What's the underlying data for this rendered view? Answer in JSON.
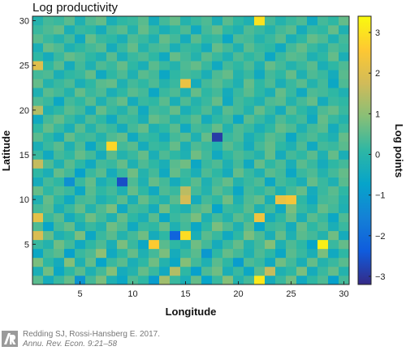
{
  "chart_data": {
    "type": "heatmap",
    "title": "Log productivity",
    "xlabel": "Longitude",
    "ylabel": "Latitude",
    "colorbar_label": "Log points",
    "x_range": [
      0.5,
      30.5
    ],
    "y_range": [
      0.5,
      30.5
    ],
    "x_ticks": [
      5,
      10,
      15,
      20,
      25,
      30
    ],
    "y_ticks": [
      5,
      10,
      15,
      20,
      25,
      30
    ],
    "color_range": [
      -3.2,
      3.4
    ],
    "color_ticks": [
      -3,
      -2,
      -1,
      0,
      1,
      2,
      3
    ],
    "colormap": [
      "#352a87",
      "#0f5cdd",
      "#1481d6",
      "#06a4ca",
      "#2eb7a4",
      "#87bf77",
      "#d1bb59",
      "#fec832",
      "#f9fb0e"
    ],
    "grid_size": [
      30,
      30
    ],
    "values_note": "",
    "z": [
      [
        0.5,
        -0.4,
        0.2,
        0.6,
        -1.1,
        0.3,
        0.8,
        -0.2,
        -0.6,
        0.4,
        0.1,
        -0.9,
        1.2,
        0.2,
        -0.3,
        0.6,
        -0.7,
        0.2,
        0.9,
        -0.1,
        0.3,
        3.1,
        -0.4,
        0.2,
        0.7,
        -0.5,
        0.1,
        0.4,
        -0.8,
        0.3
      ],
      [
        -0.3,
        0.7,
        -0.6,
        0.1,
        0.5,
        -0.2,
        0.3,
        0.9,
        -0.4,
        -0.1,
        0.6,
        0.2,
        -0.5,
        1.4,
        0.1,
        -0.8,
        0.4,
        0.7,
        -0.3,
        0.2,
        -0.6,
        0.5,
        1.6,
        -0.2,
        0.1,
        0.8,
        -0.4,
        0.2,
        0.6,
        -0.1
      ],
      [
        0.8,
        0.1,
        -0.4,
        0.9,
        -0.2,
        0.6,
        -0.7,
        0.2,
        0.5,
        -0.3,
        0.1,
        0.7,
        -0.1,
        -0.6,
        0.9,
        0.3,
        -0.2,
        0.5,
        0.1,
        -0.9,
        0.4,
        0.2,
        -0.5,
        0.7,
        0.3,
        -0.3,
        0.6,
        -0.1,
        0.2,
        0.5
      ],
      [
        -0.6,
        0.3,
        0.5,
        -0.8,
        0.2,
        0.4,
        1.0,
        -0.5,
        0.1,
        0.6,
        -0.2,
        0.3,
        0.8,
        -0.4,
        0.2,
        0.5,
        -1.0,
        0.1,
        0.6,
        0.3,
        -0.2,
        0.4,
        0.1,
        -0.6,
        0.5,
        0.2,
        -0.3,
        0.8,
        -0.5,
        0.1
      ],
      [
        0.2,
        -0.1,
        0.7,
        0.3,
        -0.5,
        0.1,
        0.4,
        -0.3,
        0.8,
        0.2,
        -0.6,
        2.6,
        0.5,
        0.1,
        -0.2,
        0.7,
        0.3,
        -0.4,
        0.2,
        0.6,
        -0.1,
        0.3,
        0.9,
        -0.2,
        0.4,
        0.1,
        -0.7,
        3.2,
        0.2,
        0.6
      ],
      [
        1.9,
        0.6,
        -0.2,
        0.1,
        0.8,
        -0.6,
        0.2,
        0.5,
        -0.1,
        0.3,
        0.7,
        -0.4,
        0.1,
        -2.2,
        2.9,
        -0.3,
        0.5,
        0.2,
        -0.5,
        0.1,
        0.8,
        0.4,
        -0.3,
        0.6,
        -0.2,
        0.5,
        0.3,
        -0.1,
        0.7,
        -0.4
      ],
      [
        0.4,
        -0.7,
        0.3,
        0.6,
        -0.3,
        0.2,
        -0.1,
        0.7,
        0.4,
        -0.5,
        0.2,
        0.1,
        0.6,
        -0.2,
        0.3,
        -0.6,
        0.1,
        0.8,
        0.4,
        -0.2,
        0.5,
        -0.7,
        0.2,
        0.3,
        -0.4,
        0.6,
        0.1,
        0.4,
        -0.3,
        0.2
      ],
      [
        2.1,
        0.2,
        0.5,
        -0.4,
        0.1,
        0.7,
        0.3,
        -0.2,
        0.6,
        0.1,
        -0.3,
        0.5,
        -0.6,
        0.2,
        0.4,
        0.8,
        -0.2,
        0.3,
        -0.1,
        0.5,
        0.2,
        2.3,
        -0.4,
        0.1,
        0.6,
        -0.3,
        0.5,
        0.2,
        -0.6,
        0.4
      ],
      [
        0.3,
        0.5,
        -0.3,
        0.2,
        0.6,
        -0.1,
        0.4,
        0.8,
        -0.5,
        0.3,
        0.2,
        -0.4,
        0.7,
        0.1,
        -0.2,
        0.4,
        0.6,
        -0.7,
        0.2,
        0.1,
        0.5,
        -0.2,
        0.3,
        -0.5,
        0.8,
        0.2,
        -0.1,
        0.6,
        0.3,
        -0.2
      ],
      [
        -0.2,
        0.6,
        0.1,
        -0.5,
        0.3,
        0.4,
        -0.2,
        0.1,
        0.5,
        -0.3,
        0.6,
        0.2,
        -0.1,
        0.5,
        1.8,
        -0.4,
        0.3,
        0.1,
        0.7,
        -0.2,
        0.4,
        0.6,
        -0.3,
        2.2,
        2.4,
        0.1,
        -0.5,
        0.3,
        0.4,
        -0.1
      ],
      [
        0.6,
        0.1,
        0.4,
        0.2,
        -0.6,
        0.5,
        0.1,
        0.3,
        -0.2,
        0.6,
        0.1,
        -0.5,
        0.4,
        0.2,
        1.5,
        0.3,
        -0.1,
        0.5,
        0.2,
        -0.6,
        0.3,
        0.1,
        0.4,
        -0.2,
        0.3,
        0.6,
        -0.4,
        0.2,
        0.5,
        0.1
      ],
      [
        -0.4,
        0.3,
        0.1,
        -1.2,
        0.2,
        0.6,
        -0.3,
        0.1,
        -2.6,
        0.4,
        -0.2,
        0.6,
        0.3,
        -0.4,
        0.1,
        0.5,
        -0.2,
        0.3,
        0.6,
        -0.1,
        0.2,
        0.4,
        -0.6,
        0.3,
        0.1,
        -0.3,
        0.6,
        0.2,
        -0.2,
        0.5
      ],
      [
        0.1,
        -0.3,
        0.6,
        0.3,
        -0.8,
        0.2,
        0.5,
        -0.4,
        0.2,
        0.7,
        -0.1,
        0.3,
        -0.5,
        0.6,
        0.2,
        -0.3,
        0.4,
        0.1,
        -0.4,
        0.6,
        0.2,
        -0.2,
        0.5,
        0.3,
        -0.6,
        0.2,
        0.4,
        -0.1,
        0.3,
        0.6
      ],
      [
        1.6,
        0.4,
        -0.2,
        0.5,
        0.1,
        -0.5,
        0.3,
        0.2,
        0.6,
        -0.2,
        0.4,
        0.1,
        -0.3,
        0.5,
        0.7,
        -0.6,
        0.2,
        0.4,
        -0.2,
        0.3,
        -0.5,
        0.6,
        0.1,
        0.4,
        -0.3,
        0.5,
        0.2,
        -0.4,
        0.1,
        0.3
      ],
      [
        0.2,
        -0.5,
        0.3,
        0.1,
        0.6,
        0.3,
        -0.4,
        0.5,
        -0.1,
        0.2,
        0.6,
        -0.3,
        0.4,
        0.1,
        -0.2,
        0.7,
        0.3,
        -0.5,
        0.1,
        0.4,
        0.2,
        -0.1,
        0.6,
        -0.4,
        0.3,
        0.1,
        0.5,
        -0.2,
        0.6,
        -0.3
      ],
      [
        -0.3,
        0.2,
        0.5,
        -0.2,
        0.4,
        -0.6,
        0.2,
        2.8,
        0.3,
        0.5,
        -0.4,
        0.2,
        0.1,
        0.6,
        -0.3,
        0.4,
        0.2,
        -0.1,
        0.5,
        0.2,
        -0.4,
        0.3,
        0.6,
        0.1,
        -0.2,
        0.4,
        -0.5,
        0.3,
        0.2,
        0.5
      ],
      [
        0.5,
        0.1,
        -0.4,
        0.6,
        0.2,
        0.3,
        -0.1,
        0.4,
        0.6,
        -0.5,
        0.2,
        0.1,
        -0.4,
        0.3,
        0.5,
        -0.2,
        0.6,
        -2.9,
        0.2,
        0.4,
        -0.3,
        0.1,
        0.5,
        0.3,
        -0.6,
        0.2,
        0.4,
        0.1,
        -0.2,
        0.6
      ],
      [
        0.1,
        0.6,
        0.2,
        -0.3,
        0.5,
        -0.1,
        0.4,
        0.2,
        -0.4,
        0.3,
        0.6,
        -0.2,
        0.1,
        0.5,
        -0.5,
        0.3,
        0.2,
        0.6,
        -0.1,
        0.4,
        0.2,
        -0.3,
        0.1,
        0.6,
        0.4,
        -0.2,
        0.3,
        0.5,
        -0.4,
        0.2
      ],
      [
        -0.5,
        0.3,
        0.6,
        0.2,
        -0.2,
        0.4,
        0.1,
        -0.5,
        0.3,
        0.2,
        -0.3,
        0.6,
        0.4,
        -0.1,
        0.2,
        0.5,
        -0.4,
        0.1,
        0.3,
        -0.6,
        0.5,
        0.2,
        -0.2,
        0.4,
        0.1,
        0.3,
        -0.5,
        0.6,
        0.2,
        -0.1
      ],
      [
        1.4,
        -0.2,
        0.1,
        0.5,
        0.3,
        -0.4,
        0.6,
        0.2,
        -0.1,
        0.4,
        -0.5,
        0.3,
        0.2,
        0.6,
        -0.3,
        0.1,
        0.4,
        -0.2,
        0.5,
        0.3,
        -0.1,
        0.6,
        0.2,
        -0.4,
        0.5,
        0.1,
        -0.3,
        0.4,
        0.6,
        0.2
      ],
      [
        0.4,
        0.2,
        -0.6,
        0.3,
        0.1,
        0.5,
        -0.2,
        0.3,
        0.6,
        -0.4,
        0.2,
        0.1,
        0.5,
        -0.3,
        0.4,
        -0.1,
        0.2,
        0.6,
        -0.5,
        0.3,
        0.1,
        -0.2,
        0.4,
        0.5,
        -0.1,
        0.3,
        0.6,
        -0.4,
        0.2,
        0.1
      ],
      [
        -0.2,
        0.5,
        0.3,
        -0.1,
        0.6,
        0.2,
        0.4,
        -0.3,
        0.1,
        0.5,
        0.3,
        -0.6,
        0.2,
        0.4,
        -0.2,
        0.6,
        0.1,
        0.3,
        -0.4,
        0.2,
        0.5,
        0.1,
        -0.3,
        0.6,
        0.2,
        -0.5,
        0.4,
        0.3,
        0.1,
        -0.2
      ],
      [
        0.6,
        -0.1,
        0.2,
        0.4,
        -0.3,
        0.1,
        0.5,
        0.6,
        -0.2,
        0.3,
        0.1,
        0.4,
        -0.1,
        0.2,
        2.2,
        -0.4,
        0.3,
        0.5,
        0.2,
        -0.2,
        0.6,
        0.1,
        0.4,
        -0.3,
        0.2,
        0.5,
        -0.1,
        0.3,
        -0.6,
        0.4
      ],
      [
        0.3,
        0.4,
        -0.3,
        0.1,
        0.2,
        0.6,
        -0.5,
        0.1,
        0.4,
        -0.2,
        0.5,
        0.3,
        -0.6,
        0.1,
        0.3,
        0.2,
        -0.3,
        0.4,
        0.6,
        -0.1,
        0.2,
        -0.5,
        0.3,
        0.1,
        0.6,
        -0.2,
        0.4,
        0.2,
        -0.4,
        0.5
      ],
      [
        2.0,
        0.1,
        0.5,
        -0.4,
        0.3,
        -0.2,
        0.4,
        0.2,
        0.6,
        0.1,
        -0.3,
        0.5,
        0.2,
        -0.1,
        0.4,
        0.6,
        0.2,
        -0.5,
        0.3,
        0.1,
        0.4,
        -0.2,
        0.6,
        0.3,
        -0.1,
        0.2,
        0.5,
        -0.3,
        0.1,
        0.4
      ],
      [
        0.1,
        -0.4,
        0.2,
        0.6,
        0.4,
        0.1,
        -0.2,
        0.5,
        -0.3,
        0.2,
        0.4,
        0.1,
        -0.5,
        0.6,
        0.3,
        -0.1,
        0.5,
        0.2,
        -0.2,
        0.4,
        0.1,
        0.3,
        -0.6,
        0.2,
        0.5,
        0.4,
        -0.2,
        0.1,
        0.6,
        -0.3
      ],
      [
        -0.3,
        0.6,
        0.4,
        -0.2,
        0.1,
        0.3,
        0.5,
        -0.4,
        0.2,
        0.6,
        -0.1,
        0.3,
        0.4,
        -0.3,
        0.2,
        0.1,
        -0.4,
        0.6,
        0.3,
        -0.2,
        0.5,
        0.2,
        0.1,
        -0.5,
        0.3,
        0.6,
        0.2,
        -0.1,
        0.4,
        0.2
      ],
      [
        0.5,
        0.2,
        -0.1,
        0.3,
        -0.5,
        0.6,
        0.2,
        0.1,
        -0.3,
        0.4,
        0.2,
        -0.2,
        0.6,
        0.3,
        -0.4,
        0.5,
        0.1,
        0.2,
        -0.6,
        0.4,
        0.3,
        -0.1,
        0.2,
        0.5,
        -0.3,
        0.1,
        0.6,
        0.4,
        -0.2,
        0.3
      ],
      [
        0.2,
        0.4,
        0.6,
        -0.3,
        0.2,
        0.1,
        -0.4,
        0.3,
        0.5,
        -0.1,
        0.6,
        0.2,
        -0.3,
        0.1,
        0.4,
        -0.5,
        0.3,
        0.6,
        0.1,
        -0.2,
        0.4,
        0.2,
        -0.1,
        0.3,
        0.5,
        -0.4,
        0.2,
        0.1,
        0.6,
        -0.2
      ],
      [
        -0.1,
        0.3,
        0.2,
        0.5,
        -0.2,
        0.4,
        0.6,
        -0.3,
        0.1,
        0.2,
        0.5,
        -0.4,
        0.3,
        0.6,
        -0.1,
        0.2,
        0.4,
        -0.3,
        0.5,
        0.1,
        -0.2,
        3.0,
        0.3,
        -0.1,
        0.2,
        0.4,
        -0.5,
        0.3,
        0.1,
        0.6
      ]
    ]
  },
  "credit": {
    "line1": "Redding SJ, Rossi-Hansberg E. 2017.",
    "line2": "Annu. Rev. Econ. 9:21–58",
    "logo": "annual-reviews-logo"
  }
}
